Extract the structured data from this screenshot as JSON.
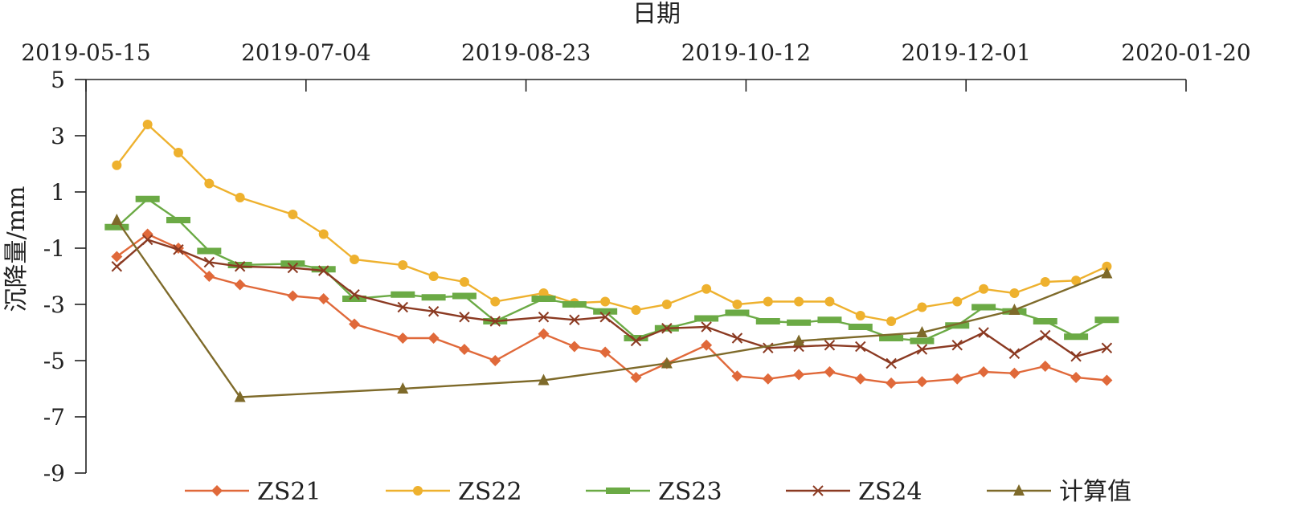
{
  "chart_data": {
    "type": "line",
    "title": "",
    "xlabel": "日期",
    "ylabel": "沉降量/mm",
    "x_axis_position": "top",
    "x_range": [
      "2019-05-15",
      "2020-01-20"
    ],
    "x_ticks": [
      "2019-05-15",
      "2019-07-04",
      "2019-08-23",
      "2019-10-12",
      "2019-12-01",
      "2020-01-20"
    ],
    "ylim": [
      -9,
      5
    ],
    "y_ticks": [
      "5",
      "3",
      "1",
      "-1",
      "-3",
      "-5",
      "-7",
      "-9"
    ],
    "grid": false,
    "legend_position": "bottom",
    "series": [
      {
        "name": "ZS21",
        "color": "#E0693A",
        "marker": "diamond",
        "points": [
          {
            "x": "2019-05-22",
            "y": -1.3
          },
          {
            "x": "2019-05-29",
            "y": -0.5
          },
          {
            "x": "2019-06-05",
            "y": -1.0
          },
          {
            "x": "2019-06-12",
            "y": -2.0
          },
          {
            "x": "2019-06-19",
            "y": -2.3
          },
          {
            "x": "2019-07-01",
            "y": -2.7
          },
          {
            "x": "2019-07-08",
            "y": -2.8
          },
          {
            "x": "2019-07-15",
            "y": -3.7
          },
          {
            "x": "2019-07-26",
            "y": -4.2
          },
          {
            "x": "2019-08-02",
            "y": -4.2
          },
          {
            "x": "2019-08-09",
            "y": -4.6
          },
          {
            "x": "2019-08-16",
            "y": -5.0
          },
          {
            "x": "2019-08-27",
            "y": -4.05
          },
          {
            "x": "2019-09-03",
            "y": -4.5
          },
          {
            "x": "2019-09-10",
            "y": -4.7
          },
          {
            "x": "2019-09-17",
            "y": -5.6
          },
          {
            "x": "2019-09-24",
            "y": -5.1
          },
          {
            "x": "2019-10-03",
            "y": -4.45
          },
          {
            "x": "2019-10-10",
            "y": -5.55
          },
          {
            "x": "2019-10-17",
            "y": -5.65
          },
          {
            "x": "2019-10-24",
            "y": -5.5
          },
          {
            "x": "2019-10-31",
            "y": -5.4
          },
          {
            "x": "2019-11-07",
            "y": -5.65
          },
          {
            "x": "2019-11-14",
            "y": -5.8
          },
          {
            "x": "2019-11-21",
            "y": -5.75
          },
          {
            "x": "2019-11-29",
            "y": -5.65
          },
          {
            "x": "2019-12-05",
            "y": -5.4
          },
          {
            "x": "2019-12-12",
            "y": -5.45
          },
          {
            "x": "2019-12-19",
            "y": -5.2
          },
          {
            "x": "2019-12-26",
            "y": -5.6
          },
          {
            "x": "2020-01-02",
            "y": -5.7
          }
        ]
      },
      {
        "name": "ZS22",
        "color": "#EEB12E",
        "marker": "circle",
        "points": [
          {
            "x": "2019-05-22",
            "y": 1.95
          },
          {
            "x": "2019-05-29",
            "y": 3.4
          },
          {
            "x": "2019-06-05",
            "y": 2.4
          },
          {
            "x": "2019-06-12",
            "y": 1.3
          },
          {
            "x": "2019-06-19",
            "y": 0.8
          },
          {
            "x": "2019-07-01",
            "y": 0.2
          },
          {
            "x": "2019-07-08",
            "y": -0.5
          },
          {
            "x": "2019-07-15",
            "y": -1.4
          },
          {
            "x": "2019-07-26",
            "y": -1.6
          },
          {
            "x": "2019-08-02",
            "y": -2.0
          },
          {
            "x": "2019-08-09",
            "y": -2.2
          },
          {
            "x": "2019-08-16",
            "y": -2.9
          },
          {
            "x": "2019-08-27",
            "y": -2.6
          },
          {
            "x": "2019-09-03",
            "y": -2.95
          },
          {
            "x": "2019-09-10",
            "y": -2.9
          },
          {
            "x": "2019-09-17",
            "y": -3.2
          },
          {
            "x": "2019-09-24",
            "y": -3.0
          },
          {
            "x": "2019-10-03",
            "y": -2.45
          },
          {
            "x": "2019-10-10",
            "y": -3.0
          },
          {
            "x": "2019-10-17",
            "y": -2.9
          },
          {
            "x": "2019-10-24",
            "y": -2.9
          },
          {
            "x": "2019-10-31",
            "y": -2.9
          },
          {
            "x": "2019-11-07",
            "y": -3.4
          },
          {
            "x": "2019-11-14",
            "y": -3.6
          },
          {
            "x": "2019-11-21",
            "y": -3.1
          },
          {
            "x": "2019-11-29",
            "y": -2.9
          },
          {
            "x": "2019-12-05",
            "y": -2.45
          },
          {
            "x": "2019-12-12",
            "y": -2.6
          },
          {
            "x": "2019-12-19",
            "y": -2.2
          },
          {
            "x": "2019-12-26",
            "y": -2.15
          },
          {
            "x": "2020-01-02",
            "y": -1.65
          }
        ]
      },
      {
        "name": "ZS23",
        "color": "#6BAA45",
        "marker": "dash",
        "points": [
          {
            "x": "2019-05-22",
            "y": -0.25
          },
          {
            "x": "2019-05-29",
            "y": 0.75
          },
          {
            "x": "2019-06-05",
            "y": 0.0
          },
          {
            "x": "2019-06-12",
            "y": -1.1
          },
          {
            "x": "2019-06-19",
            "y": -1.6
          },
          {
            "x": "2019-07-01",
            "y": -1.55
          },
          {
            "x": "2019-07-08",
            "y": -1.75
          },
          {
            "x": "2019-07-15",
            "y": -2.8
          },
          {
            "x": "2019-07-26",
            "y": -2.65
          },
          {
            "x": "2019-08-02",
            "y": -2.75
          },
          {
            "x": "2019-08-09",
            "y": -2.7
          },
          {
            "x": "2019-08-16",
            "y": -3.6
          },
          {
            "x": "2019-08-27",
            "y": -2.8
          },
          {
            "x": "2019-09-03",
            "y": -3.0
          },
          {
            "x": "2019-09-10",
            "y": -3.25
          },
          {
            "x": "2019-09-17",
            "y": -4.2
          },
          {
            "x": "2019-09-24",
            "y": -3.85
          },
          {
            "x": "2019-10-03",
            "y": -3.5
          },
          {
            "x": "2019-10-10",
            "y": -3.3
          },
          {
            "x": "2019-10-17",
            "y": -3.6
          },
          {
            "x": "2019-10-24",
            "y": -3.65
          },
          {
            "x": "2019-10-31",
            "y": -3.55
          },
          {
            "x": "2019-11-07",
            "y": -3.8
          },
          {
            "x": "2019-11-14",
            "y": -4.2
          },
          {
            "x": "2019-11-21",
            "y": -4.3
          },
          {
            "x": "2019-11-29",
            "y": -3.75
          },
          {
            "x": "2019-12-05",
            "y": -3.1
          },
          {
            "x": "2019-12-12",
            "y": -3.25
          },
          {
            "x": "2019-12-19",
            "y": -3.6
          },
          {
            "x": "2019-12-26",
            "y": -4.15
          },
          {
            "x": "2020-01-02",
            "y": -3.55
          }
        ]
      },
      {
        "name": "ZS24",
        "color": "#8B3A22",
        "marker": "x",
        "points": [
          {
            "x": "2019-05-22",
            "y": -1.65
          },
          {
            "x": "2019-05-29",
            "y": -0.7
          },
          {
            "x": "2019-06-05",
            "y": -1.05
          },
          {
            "x": "2019-06-12",
            "y": -1.5
          },
          {
            "x": "2019-06-19",
            "y": -1.65
          },
          {
            "x": "2019-07-01",
            "y": -1.7
          },
          {
            "x": "2019-07-08",
            "y": -1.8
          },
          {
            "x": "2019-07-15",
            "y": -2.65
          },
          {
            "x": "2019-07-26",
            "y": -3.1
          },
          {
            "x": "2019-08-02",
            "y": -3.25
          },
          {
            "x": "2019-08-09",
            "y": -3.45
          },
          {
            "x": "2019-08-16",
            "y": -3.6
          },
          {
            "x": "2019-08-27",
            "y": -3.45
          },
          {
            "x": "2019-09-03",
            "y": -3.55
          },
          {
            "x": "2019-09-10",
            "y": -3.45
          },
          {
            "x": "2019-09-17",
            "y": -4.3
          },
          {
            "x": "2019-09-24",
            "y": -3.85
          },
          {
            "x": "2019-10-03",
            "y": -3.8
          },
          {
            "x": "2019-10-10",
            "y": -4.2
          },
          {
            "x": "2019-10-17",
            "y": -4.55
          },
          {
            "x": "2019-10-24",
            "y": -4.5
          },
          {
            "x": "2019-10-31",
            "y": -4.45
          },
          {
            "x": "2019-11-07",
            "y": -4.5
          },
          {
            "x": "2019-11-14",
            "y": -5.1
          },
          {
            "x": "2019-11-21",
            "y": -4.6
          },
          {
            "x": "2019-11-29",
            "y": -4.45
          },
          {
            "x": "2019-12-05",
            "y": -4.0
          },
          {
            "x": "2019-12-12",
            "y": -4.75
          },
          {
            "x": "2019-12-19",
            "y": -4.1
          },
          {
            "x": "2019-12-26",
            "y": -4.85
          },
          {
            "x": "2020-01-02",
            "y": -4.55
          }
        ]
      },
      {
        "name": "计算值",
        "color": "#7E6A2A",
        "marker": "triangle",
        "points": [
          {
            "x": "2019-05-22",
            "y": 0.0
          },
          {
            "x": "2019-06-19",
            "y": -6.3
          },
          {
            "x": "2019-07-26",
            "y": -6.0
          },
          {
            "x": "2019-08-27",
            "y": -5.7
          },
          {
            "x": "2019-09-24",
            "y": -5.1
          },
          {
            "x": "2019-10-24",
            "y": -4.3
          },
          {
            "x": "2019-11-21",
            "y": -4.0
          },
          {
            "x": "2019-12-12",
            "y": -3.2
          },
          {
            "x": "2020-01-02",
            "y": -1.9
          }
        ]
      }
    ]
  }
}
